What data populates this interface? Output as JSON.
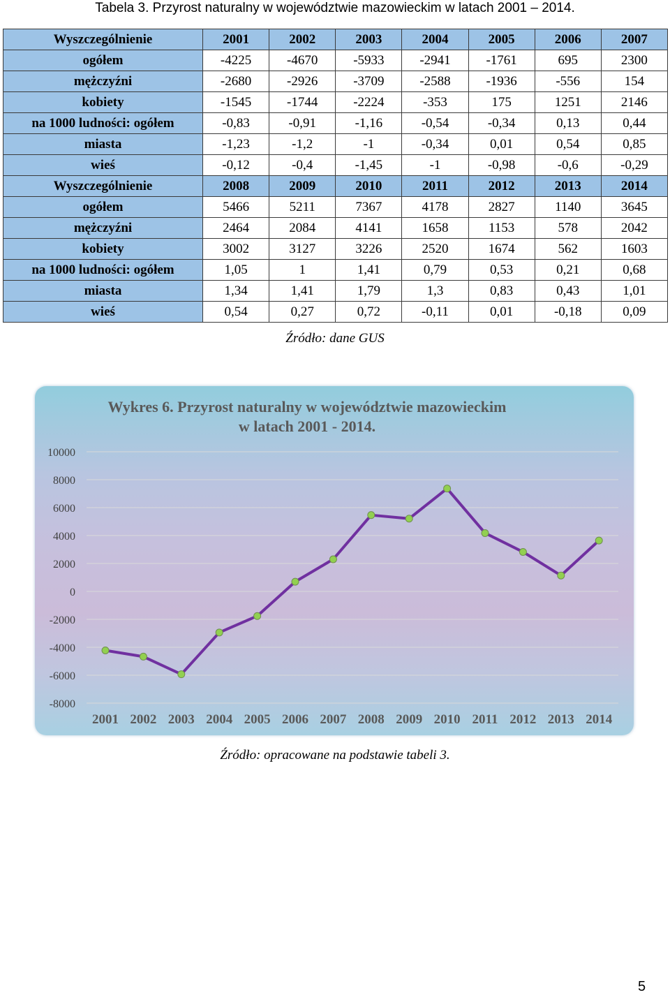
{
  "caption": "Tabela 3. Przyrost naturalny w województwie mazowieckim w latach 2001 – 2014.",
  "table": {
    "header1": [
      "Wyszczególnienie",
      "2001",
      "2002",
      "2003",
      "2004",
      "2005",
      "2006",
      "2007"
    ],
    "block1": [
      {
        "label": "ogółem",
        "values": [
          "-4225",
          "-4670",
          "-5933",
          "-2941",
          "-1761",
          "695",
          "2300"
        ]
      },
      {
        "label": "mężczyźni",
        "values": [
          "-2680",
          "-2926",
          "-3709",
          "-2588",
          "-1936",
          "-556",
          "154"
        ]
      },
      {
        "label": "kobiety",
        "values": [
          "-1545",
          "-1744",
          "-2224",
          "-353",
          "175",
          "1251",
          "2146"
        ]
      },
      {
        "label": "na 1000 ludności: ogółem",
        "values": [
          "-0,83",
          "-0,91",
          "-1,16",
          "-0,54",
          "-0,34",
          "0,13",
          "0,44"
        ]
      },
      {
        "label": "miasta",
        "values": [
          "-1,23",
          "-1,2",
          "-1",
          "-0,34",
          "0,01",
          "0,54",
          "0,85"
        ]
      },
      {
        "label": "wieś",
        "values": [
          "-0,12",
          "-0,4",
          "-1,45",
          "-1",
          "-0,98",
          "-0,6",
          "-0,29"
        ]
      }
    ],
    "header2": [
      "Wyszczególnienie",
      "2008",
      "2009",
      "2010",
      "2011",
      "2012",
      "2013",
      "2014"
    ],
    "block2": [
      {
        "label": "ogółem",
        "values": [
          "5466",
          "5211",
          "7367",
          "4178",
          "2827",
          "1140",
          "3645"
        ]
      },
      {
        "label": "mężczyźni",
        "values": [
          "2464",
          "2084",
          "4141",
          "1658",
          "1153",
          "578",
          "2042"
        ]
      },
      {
        "label": "kobiety",
        "values": [
          "3002",
          "3127",
          "3226",
          "2520",
          "1674",
          "562",
          "1603"
        ]
      },
      {
        "label": "na 1000 ludności: ogółem",
        "values": [
          "1,05",
          "1",
          "1,41",
          "0,79",
          "0,53",
          "0,21",
          "0,68"
        ]
      },
      {
        "label": "miasta",
        "values": [
          "1,34",
          "1,41",
          "1,79",
          "1,3",
          "0,83",
          "0,43",
          "1,01"
        ]
      },
      {
        "label": "wieś",
        "values": [
          "0,54",
          "0,27",
          "0,72",
          "-0,11",
          "0,01",
          "-0,18",
          "0,09"
        ]
      }
    ]
  },
  "source_table": "Źródło: dane GUS",
  "chart_data": {
    "type": "line",
    "title_line1": "Wykres 6. Przyrost naturalny w województwie mazowieckim",
    "title_line2": "w latach 2001 - 2014.",
    "categories": [
      "2001",
      "2002",
      "2003",
      "2004",
      "2005",
      "2006",
      "2007",
      "2008",
      "2009",
      "2010",
      "2011",
      "2012",
      "2013",
      "2014"
    ],
    "values": [
      -4225,
      -4670,
      -5933,
      -2941,
      -1761,
      695,
      2300,
      5466,
      5211,
      7367,
      4178,
      2827,
      1140,
      3645
    ],
    "y_ticks": [
      10000,
      8000,
      6000,
      4000,
      2000,
      0,
      -2000,
      -4000,
      -6000,
      -8000
    ],
    "ylim": [
      -8000,
      10000
    ],
    "grid": true,
    "line_color": "#7030a0",
    "marker_color": "#92d050",
    "gridline_color": "#d9d9d9"
  },
  "source_chart": "Źródło: opracowane na podstawie tabeli 3.",
  "page_number": "5"
}
